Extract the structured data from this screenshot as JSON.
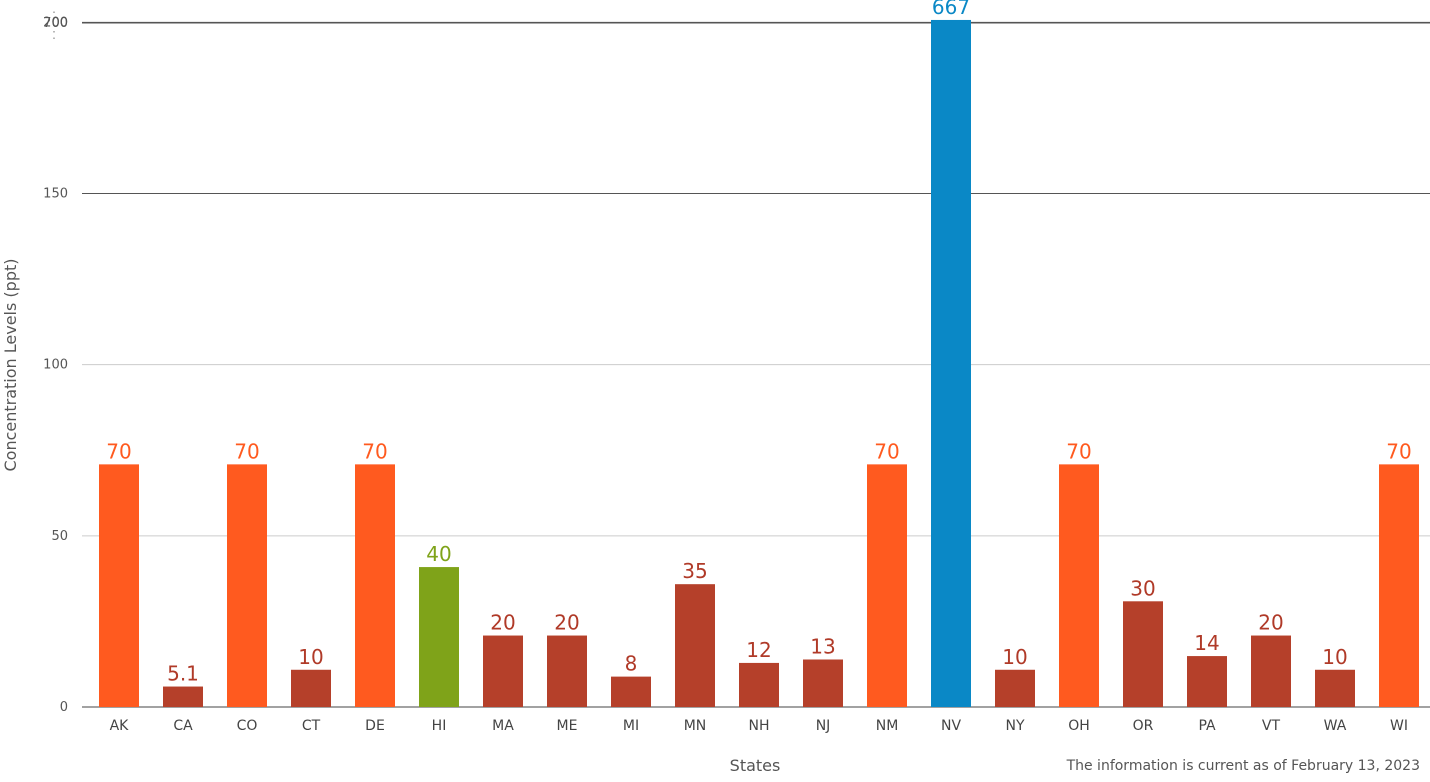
{
  "chart_data": {
    "type": "bar",
    "xlabel": "States",
    "ylabel": "Concentration Levels (ppt)",
    "note": "The information is current as of February 13, 2023",
    "categories": [
      "AK",
      "CA",
      "CO",
      "CT",
      "DE",
      "HI",
      "MA",
      "ME",
      "MI",
      "MN",
      "NH",
      "NJ",
      "NM",
      "NV",
      "NY",
      "OH",
      "OR",
      "PA",
      "VT",
      "WA",
      "WI"
    ],
    "values": [
      70,
      5.1,
      70,
      10,
      70,
      40,
      20,
      20,
      8,
      35,
      12,
      13,
      70,
      667,
      10,
      70,
      30,
      14,
      20,
      10,
      70
    ],
    "value_labels": [
      "70",
      "5.1",
      "70",
      "10",
      "70",
      "40",
      "20",
      "20",
      "8",
      "35",
      "12",
      "13",
      "70",
      "667",
      "10",
      "70",
      "30",
      "14",
      "20",
      "10",
      "70"
    ],
    "bar_colors": [
      "#ff5a1f",
      "#b5402a",
      "#ff5a1f",
      "#b5402a",
      "#ff5a1f",
      "#7fa319",
      "#b5402a",
      "#b5402a",
      "#b5402a",
      "#b5402a",
      "#b5402a",
      "#b5402a",
      "#ff5a1f",
      "#0a88c6",
      "#b5402a",
      "#ff5a1f",
      "#b5402a",
      "#b5402a",
      "#b5402a",
      "#b5402a",
      "#ff5a1f"
    ],
    "y_ticks": [
      "0",
      "50",
      "100",
      "150",
      "200",
      "700"
    ],
    "axis_break": {
      "from": 200,
      "to": 700
    },
    "grid": true
  }
}
